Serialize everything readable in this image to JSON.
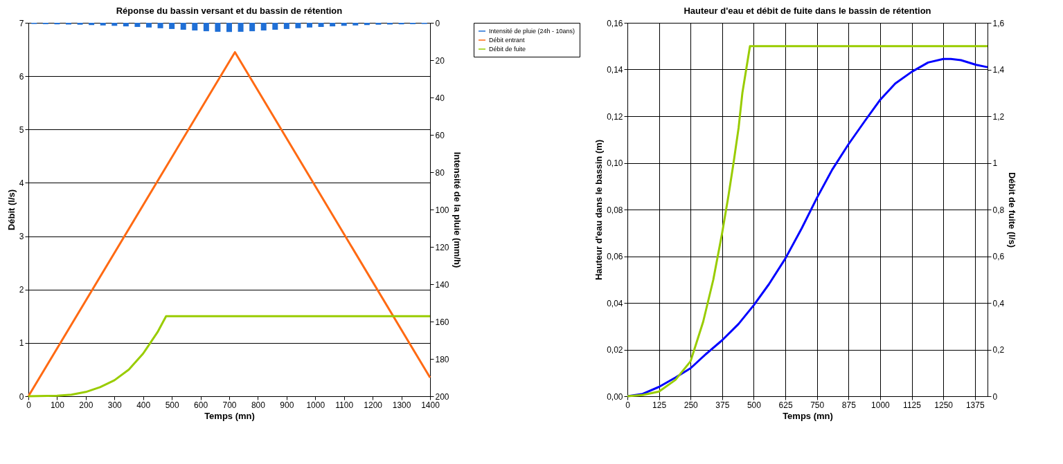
{
  "chart_data": [
    {
      "type": "line",
      "title": "Réponse du bassin versant et du bassin de rétention",
      "xlabel": "Temps (mn)",
      "ylabel": "Débit (l/s)",
      "y2label": "Intensité de la pluie (mm/h)",
      "xlim": [
        0,
        1400
      ],
      "xticks": [
        0,
        100,
        200,
        300,
        400,
        500,
        600,
        700,
        800,
        900,
        1000,
        1100,
        1200,
        1300,
        1400
      ],
      "ylim": [
        0,
        7
      ],
      "yticks": [
        0,
        1,
        2,
        3,
        4,
        5,
        6,
        7
      ],
      "y2lim": [
        200,
        0
      ],
      "y2ticks": [
        0,
        20,
        40,
        60,
        80,
        100,
        120,
        140,
        160,
        180,
        200
      ],
      "grid": "y",
      "legend": "right",
      "series": [
        {
          "name": "Intensité de pluie (24h - 10ans)",
          "type": "bar",
          "axis": "y2",
          "color": "#1f6fd6",
          "x": [
            20,
            60,
            100,
            140,
            180,
            220,
            260,
            300,
            340,
            380,
            420,
            460,
            500,
            540,
            580,
            620,
            660,
            700,
            740,
            780,
            820,
            860,
            900,
            940,
            980,
            1020,
            1060,
            1100,
            1140,
            1180,
            1220,
            1260,
            1300,
            1340,
            1380
          ],
          "values": [
            0.6,
            0.7,
            0.8,
            0.9,
            1.0,
            1.2,
            1.4,
            1.6,
            1.9,
            2.2,
            2.5,
            2.9,
            3.3,
            3.7,
            4.1,
            4.5,
            4.8,
            4.9,
            4.8,
            4.5,
            4.1,
            3.7,
            3.3,
            2.9,
            2.5,
            2.2,
            1.9,
            1.6,
            1.4,
            1.2,
            1.0,
            0.9,
            0.8,
            0.7,
            0.6
          ]
        },
        {
          "name": "Débit entrant",
          "color": "#ff6a13",
          "x": [
            0,
            720,
            1400
          ],
          "values": [
            0,
            6.45,
            0.35
          ]
        },
        {
          "name": "Débit de fuite",
          "color": "#99cc00",
          "x": [
            0,
            100,
            150,
            200,
            250,
            300,
            350,
            400,
            450,
            480,
            1400
          ],
          "values": [
            0,
            0.01,
            0.03,
            0.08,
            0.17,
            0.3,
            0.5,
            0.8,
            1.2,
            1.5,
            1.5
          ]
        }
      ]
    },
    {
      "type": "line",
      "title": "Hauteur d'eau et débit de fuite dans le bassin de rétention",
      "xlabel": "Temps (mn)",
      "ylabel": "Hauteur d'eau dans le bassin (m)",
      "y2label": "Débit de fuite (l/s)",
      "xlim": [
        0,
        1425
      ],
      "xticks": [
        0,
        125,
        250,
        375,
        500,
        625,
        750,
        875,
        1000,
        1125,
        1250,
        1375
      ],
      "ylim": [
        0,
        0.16
      ],
      "yticks": [
        {
          "value": 0,
          "label": "0,00"
        },
        {
          "value": 0.02,
          "label": "0,02"
        },
        {
          "value": 0.04,
          "label": "0,04"
        },
        {
          "value": 0.06,
          "label": "0,06"
        },
        {
          "value": 0.08,
          "label": "0,08"
        },
        {
          "value": 0.1,
          "label": "0,10"
        },
        {
          "value": 0.12,
          "label": "0,12"
        },
        {
          "value": 0.14,
          "label": "0,14"
        },
        {
          "value": 0.16,
          "label": "0,16"
        }
      ],
      "y2lim": [
        0,
        1.6
      ],
      "y2ticks": [
        0,
        {
          "value": 0.2,
          "label": "0,2"
        },
        {
          "value": 0.4,
          "label": "0,4"
        },
        {
          "value": 0.6,
          "label": "0,6"
        },
        {
          "value": 0.8,
          "label": "0,8"
        },
        1,
        {
          "value": 1.2,
          "label": "1,2"
        },
        {
          "value": 1.4,
          "label": "1,4"
        },
        {
          "value": 1.6,
          "label": "1,6"
        }
      ],
      "grid": true,
      "series": [
        {
          "color": "#0000ff",
          "x": [
            0,
            60,
            125,
            190,
            250,
            310,
            375,
            440,
            500,
            560,
            625,
            690,
            750,
            810,
            875,
            940,
            1000,
            1060,
            1125,
            1190,
            1250,
            1280,
            1320,
            1380,
            1425
          ],
          "values": [
            0,
            0.001,
            0.004,
            0.008,
            0.012,
            0.018,
            0.024,
            0.031,
            0.039,
            0.048,
            0.059,
            0.072,
            0.085,
            0.097,
            0.108,
            0.118,
            0.127,
            0.134,
            0.139,
            0.143,
            0.1445,
            0.1445,
            0.144,
            0.142,
            0.141
          ]
        },
        {
          "color": "#99cc00",
          "axis": "y2",
          "x": [
            0,
            60,
            125,
            190,
            250,
            300,
            340,
            375,
            400,
            420,
            440,
            455,
            470,
            485,
            1425
          ],
          "values": [
            0,
            0.005,
            0.02,
            0.07,
            0.15,
            0.32,
            0.5,
            0.7,
            0.86,
            1.0,
            1.15,
            1.3,
            1.4,
            1.5,
            1.5
          ]
        }
      ]
    }
  ]
}
